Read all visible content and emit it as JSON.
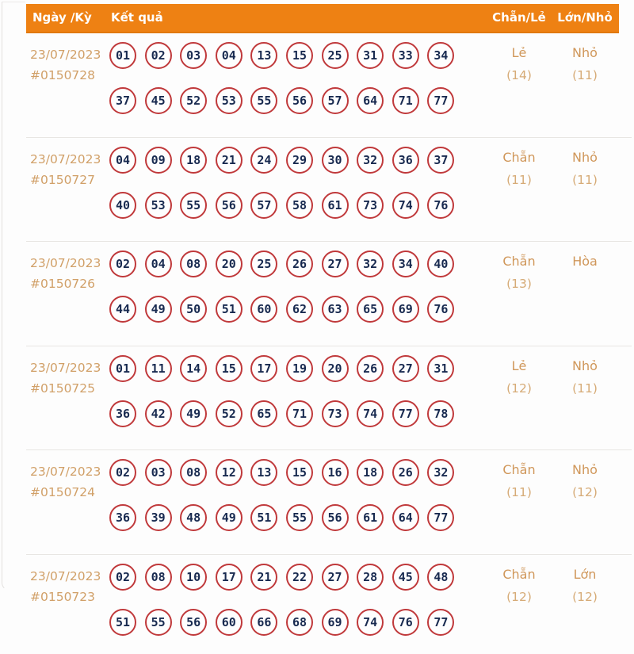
{
  "header": {
    "col_date": "Ngày /Kỳ",
    "col_result": "Kết quả",
    "col_even_odd": "Chẵn/Lẻ",
    "col_big_small": "Lớn/Nhỏ"
  },
  "colors": {
    "header_bg": "#ee8113",
    "header_border": "#e1790d",
    "date_color": "#d1a068",
    "value_color": "#d0975a",
    "count_color": "#d6ab77",
    "ball_border": "#c0393b",
    "ball_number": "#182a50",
    "divider": "#e8e6e3"
  },
  "rows": [
    {
      "date": "23/07/2023",
      "period": "#0150728",
      "numbers_line1": [
        "01",
        "02",
        "03",
        "04",
        "13",
        "15",
        "25",
        "31",
        "33",
        "34"
      ],
      "numbers_line2": [
        "37",
        "45",
        "52",
        "53",
        "55",
        "56",
        "57",
        "64",
        "71",
        "77"
      ],
      "even_odd": "Lẻ",
      "even_odd_count": "(14)",
      "big_small": "Nhỏ",
      "big_small_count": "(11)"
    },
    {
      "date": "23/07/2023",
      "period": "#0150727",
      "numbers_line1": [
        "04",
        "09",
        "18",
        "21",
        "24",
        "29",
        "30",
        "32",
        "36",
        "37"
      ],
      "numbers_line2": [
        "40",
        "53",
        "55",
        "56",
        "57",
        "58",
        "61",
        "73",
        "74",
        "76"
      ],
      "even_odd": "Chẵn",
      "even_odd_count": "(11)",
      "big_small": "Nhỏ",
      "big_small_count": "(11)"
    },
    {
      "date": "23/07/2023",
      "period": "#0150726",
      "numbers_line1": [
        "02",
        "04",
        "08",
        "20",
        "25",
        "26",
        "27",
        "32",
        "34",
        "40"
      ],
      "numbers_line2": [
        "44",
        "49",
        "50",
        "51",
        "60",
        "62",
        "63",
        "65",
        "69",
        "76"
      ],
      "even_odd": "Chẵn",
      "even_odd_count": "(13)",
      "big_small": "Hòa",
      "big_small_count": ""
    },
    {
      "date": "23/07/2023",
      "period": "#0150725",
      "numbers_line1": [
        "01",
        "11",
        "14",
        "15",
        "17",
        "19",
        "20",
        "26",
        "27",
        "31"
      ],
      "numbers_line2": [
        "36",
        "42",
        "49",
        "52",
        "65",
        "71",
        "73",
        "74",
        "77",
        "78"
      ],
      "even_odd": "Lẻ",
      "even_odd_count": "(12)",
      "big_small": "Nhỏ",
      "big_small_count": "(11)"
    },
    {
      "date": "23/07/2023",
      "period": "#0150724",
      "numbers_line1": [
        "02",
        "03",
        "08",
        "12",
        "13",
        "15",
        "16",
        "18",
        "26",
        "32"
      ],
      "numbers_line2": [
        "36",
        "39",
        "48",
        "49",
        "51",
        "55",
        "56",
        "61",
        "64",
        "77"
      ],
      "even_odd": "Chẵn",
      "even_odd_count": "(11)",
      "big_small": "Nhỏ",
      "big_small_count": "(12)"
    },
    {
      "date": "23/07/2023",
      "period": "#0150723",
      "numbers_line1": [
        "02",
        "08",
        "10",
        "17",
        "21",
        "22",
        "27",
        "28",
        "45",
        "48"
      ],
      "numbers_line2": [
        "51",
        "55",
        "56",
        "60",
        "66",
        "68",
        "69",
        "74",
        "76",
        "77"
      ],
      "even_odd": "Chẵn",
      "even_odd_count": "(12)",
      "big_small": "Lớn",
      "big_small_count": "(12)"
    }
  ]
}
